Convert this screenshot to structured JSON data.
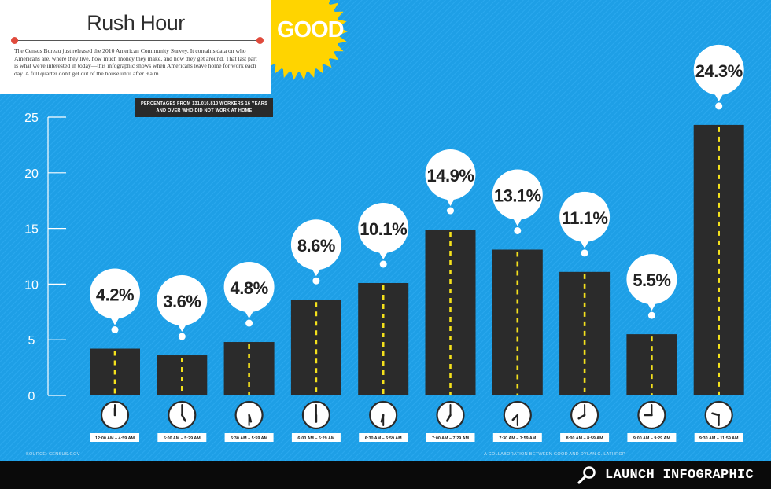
{
  "header": {
    "title": "Rush Hour",
    "description": "The Census Bureau just released the 2010 American Community Survey. It contains data on who Americans are, where they live, how much money they make, and how they get around. That last part is what we're interested in today—this infographic shows when Americans leave home for work each day. A full quarter don't get out of the house until after 9 a.m.",
    "subtitle": "PERCENTAGES FROM 131,016,810 WORKERS 16 YEARS AND OVER WHO DID NOT WORK AT HOME"
  },
  "brand": {
    "name": "GOOD"
  },
  "footer": {
    "source": "SOURCE: CENSUS.GOV",
    "credit": "A COLLABORATION BETWEEN GOOD AND DYLAN C. LATHROP",
    "launch_label": "LAUNCH INFOGRAPHIC",
    "launch_icon": "magnifier-icon"
  },
  "colors": {
    "background": "#1e9fe6",
    "bar": "#2b2b2b",
    "lane_dash": "#f4e11c",
    "sun": "#ffd400",
    "rule_dot": "#e04a3c"
  },
  "chart_data": {
    "type": "bar",
    "title": "",
    "xlabel": "",
    "ylabel": "",
    "ylim": [
      0,
      25
    ],
    "yticks": [
      0,
      5,
      10,
      15,
      20,
      25
    ],
    "categories": [
      "12:00 AM – 4:59 AM",
      "5:00 AM – 5:29 AM",
      "5:30 AM – 5:59 AM",
      "6:00 AM – 6:29 AM",
      "6:30 AM – 6:59 AM",
      "7:00 AM – 7:29 AM",
      "7:30 AM – 7:59 AM",
      "8:00 AM – 8:59 AM",
      "9:00 AM – 9:29 AM",
      "9:30 AM – 11:59 AM"
    ],
    "values": [
      4.2,
      3.6,
      4.8,
      8.6,
      10.1,
      14.9,
      13.1,
      11.1,
      5.5,
      24.3
    ],
    "value_labels": [
      "4.2%",
      "3.6%",
      "4.8%",
      "8.6%",
      "10.1%",
      "14.9%",
      "13.1%",
      "11.1%",
      "5.5%",
      "24.3%"
    ],
    "clock_times": [
      "12:00",
      "5:00",
      "5:30",
      "6:00",
      "6:30",
      "7:00",
      "7:30",
      "8:00",
      "9:00",
      "9:30"
    ],
    "grid": false,
    "legend": "none"
  }
}
